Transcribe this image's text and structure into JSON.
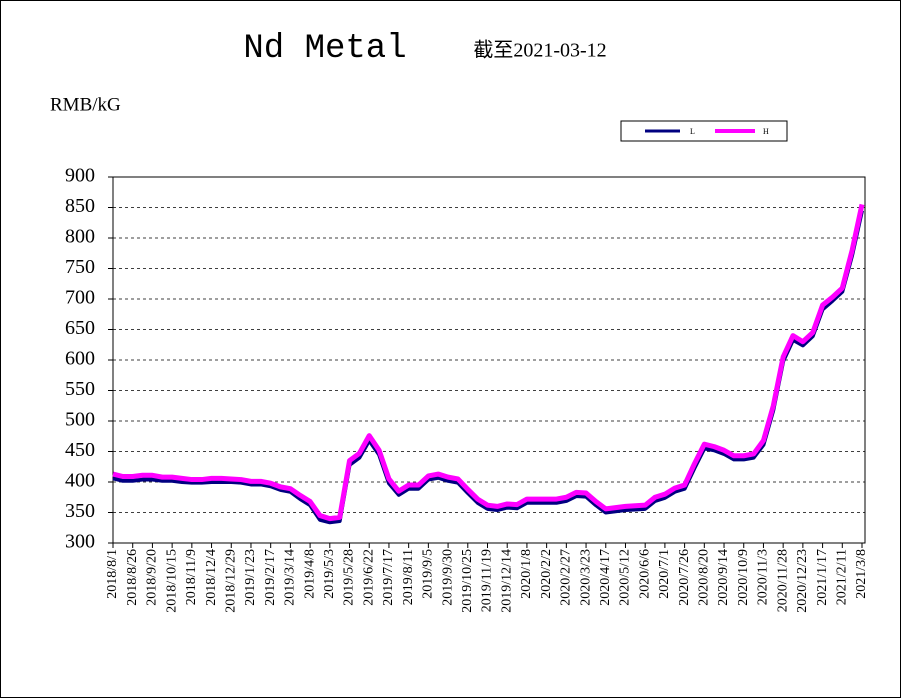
{
  "chart_data": {
    "type": "line",
    "title": "Nd Metal",
    "subtitle": "截至2021-03-12",
    "y_label": "RMB/kG",
    "categories": [
      "2018/8/1",
      null,
      "2018/8/26",
      null,
      "2018/9/20",
      null,
      "2018/10/15",
      null,
      "2018/11/9",
      null,
      "2018/12/4",
      null,
      "2018/12/29",
      null,
      "2019/1/23",
      null,
      "2019/2/17",
      null,
      "2019/3/14",
      null,
      "2019/4/8",
      null,
      "2019/5/3",
      null,
      "2019/5/28",
      null,
      "2019/6/22",
      null,
      "2019/7/17",
      null,
      "2019/8/11",
      null,
      "2019/9/5",
      null,
      "2019/9/30",
      null,
      "2019/10/25",
      null,
      "2019/11/19",
      null,
      "2019/12/14",
      null,
      "2020/1/8",
      null,
      "2020/2/2",
      null,
      "2020/2/27",
      null,
      "2020/3/23",
      null,
      "2020/4/17",
      null,
      "2020/5/12",
      null,
      "2020/6/6",
      null,
      "2020/7/1",
      null,
      "2020/7/26",
      null,
      "2020/8/20",
      null,
      "2020/9/14",
      null,
      "2020/10/9",
      null,
      "2020/11/3",
      null,
      "2020/11/28",
      null,
      "2020/12/23",
      null,
      "2021/1/17",
      null,
      "2021/2/11",
      null,
      "2021/3/8"
    ],
    "series": [
      {
        "name": "L",
        "color": "#000080",
        "values": [
          406,
          402,
          402,
          404,
          404,
          402,
          402,
          400,
          399,
          399,
          400,
          400,
          400,
          399,
          396,
          396,
          393,
          387,
          384,
          372,
          362,
          338,
          334,
          336,
          428,
          440,
          468,
          445,
          398,
          379,
          389,
          389,
          404,
          407,
          402,
          399,
          382,
          366,
          356,
          354,
          358,
          357,
          366,
          366,
          366,
          366,
          369,
          377,
          376,
          362,
          350,
          352,
          354,
          355,
          356,
          369,
          374,
          384,
          389,
          423,
          455,
          452,
          446,
          437,
          437,
          440,
          461,
          518,
          598,
          633,
          624,
          639,
          683,
          697,
          712,
          772,
          845
        ]
      },
      {
        "name": "H",
        "color": "#ff00ff",
        "values": [
          413,
          409,
          409,
          411,
          411,
          408,
          408,
          406,
          404,
          404,
          406,
          406,
          405,
          404,
          401,
          401,
          398,
          392,
          389,
          378,
          368,
          345,
          340,
          342,
          435,
          447,
          476,
          452,
          405,
          385,
          395,
          395,
          410,
          413,
          408,
          405,
          388,
          372,
          362,
          360,
          364,
          363,
          372,
          372,
          372,
          372,
          375,
          383,
          382,
          368,
          356,
          358,
          360,
          361,
          362,
          375,
          380,
          390,
          395,
          430,
          462,
          458,
          452,
          443,
          443,
          446,
          468,
          525,
          605,
          640,
          630,
          645,
          690,
          703,
          718,
          780,
          855
        ]
      }
    ],
    "ylim": [
      300,
      900
    ],
    "yticks": [
      300,
      350,
      400,
      450,
      500,
      550,
      600,
      650,
      700,
      750,
      800,
      850,
      900
    ],
    "grid": true,
    "legend": "top-right"
  }
}
